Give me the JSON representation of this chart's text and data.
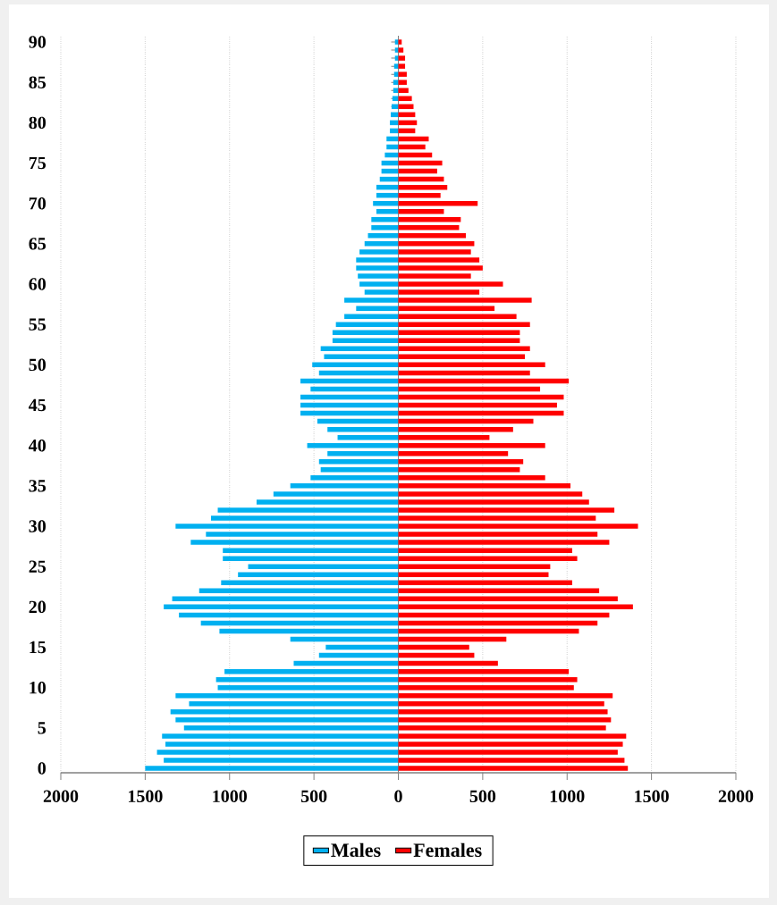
{
  "chart_data": {
    "type": "bar",
    "orientation": "horizontal",
    "categories": [
      "90",
      null,
      null,
      null,
      null,
      "85",
      null,
      null,
      null,
      null,
      "80",
      null,
      null,
      null,
      null,
      "75",
      null,
      null,
      null,
      null,
      "70",
      null,
      null,
      null,
      null,
      "65",
      null,
      null,
      null,
      null,
      "60",
      null,
      null,
      null,
      null,
      "55",
      null,
      null,
      null,
      null,
      "50",
      null,
      null,
      null,
      null,
      "45",
      null,
      null,
      null,
      null,
      "40",
      null,
      null,
      null,
      null,
      "35",
      null,
      null,
      null,
      null,
      "30",
      null,
      null,
      null,
      null,
      "25",
      null,
      null,
      null,
      null,
      "20",
      null,
      null,
      null,
      null,
      "15",
      null,
      null,
      null,
      null,
      "10",
      null,
      null,
      null,
      null,
      "5",
      null,
      null,
      null,
      null,
      "0"
    ],
    "series": [
      {
        "name": "Males",
        "color": "#00b0f0",
        "values": [
          -20,
          -20,
          -20,
          -25,
          -25,
          -30,
          -30,
          -35,
          -40,
          -45,
          -50,
          -50,
          -70,
          -70,
          -80,
          -100,
          -100,
          -110,
          -130,
          -130,
          -150,
          -130,
          -160,
          -160,
          -180,
          -200,
          -230,
          -250,
          -250,
          -240,
          -230,
          -200,
          -320,
          -250,
          -320,
          -370,
          -390,
          -390,
          -460,
          -440,
          -510,
          -470,
          -580,
          -520,
          -580,
          -580,
          -580,
          -480,
          -420,
          -360,
          -540,
          -420,
          -470,
          -460,
          -520,
          -640,
          -740,
          -840,
          -1070,
          -1110,
          -1320,
          -1140,
          -1230,
          -1040,
          -1040,
          -890,
          -950,
          -1050,
          -1180,
          -1340,
          -1390,
          -1300,
          -1170,
          -1060,
          -640,
          -430,
          -470,
          -620,
          -1030,
          -1080,
          -1070,
          -1320,
          -1240,
          -1350,
          -1320,
          -1270,
          -1400,
          -1380,
          -1430,
          -1390,
          -1500
        ]
      },
      {
        "name": "Females",
        "color": "#ff0000",
        "values": [
          20,
          30,
          40,
          40,
          50,
          50,
          60,
          80,
          90,
          100,
          110,
          100,
          180,
          160,
          200,
          260,
          230,
          270,
          290,
          250,
          470,
          270,
          370,
          360,
          400,
          450,
          430,
          480,
          500,
          430,
          620,
          480,
          790,
          570,
          700,
          780,
          720,
          720,
          780,
          750,
          870,
          780,
          1010,
          840,
          980,
          940,
          980,
          800,
          680,
          540,
          870,
          650,
          740,
          720,
          870,
          1020,
          1090,
          1130,
          1280,
          1170,
          1420,
          1180,
          1250,
          1030,
          1060,
          900,
          890,
          1030,
          1190,
          1300,
          1390,
          1250,
          1180,
          1070,
          640,
          420,
          450,
          590,
          1010,
          1060,
          1040,
          1270,
          1220,
          1240,
          1260,
          1230,
          1350,
          1330,
          1300,
          1340,
          1360
        ]
      }
    ],
    "xlim": [
      -2000,
      2000
    ],
    "xticks": [
      {
        "value": -2000,
        "label": "2000"
      },
      {
        "value": -1500,
        "label": "1500"
      },
      {
        "value": -1000,
        "label": "1000"
      },
      {
        "value": -500,
        "label": "500"
      },
      0,
      500,
      1000,
      1500,
      2000
    ],
    "grid": "x",
    "legend": "bottom",
    "stacked": true
  }
}
